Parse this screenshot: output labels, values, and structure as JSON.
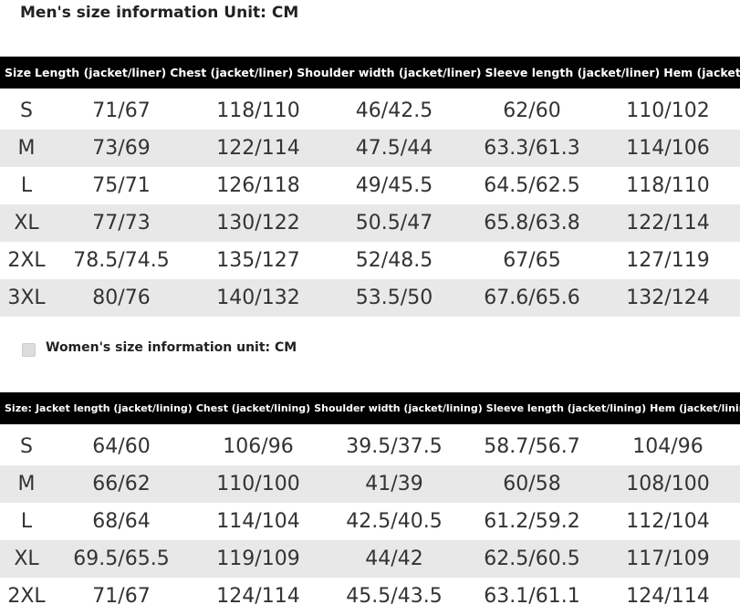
{
  "men": {
    "title": "Men's size information Unit: CM",
    "header": [
      "Size",
      "Length (jacket/liner)",
      "Chest (jacket/liner)",
      "Shoulder width (jacket/liner)",
      "Sleeve length (jacket/liner)",
      "Hem (jacket/liner)"
    ],
    "rows": [
      [
        "S",
        "71/67",
        "118/110",
        "46/42.5",
        "62/60",
        "110/102"
      ],
      [
        "M",
        "73/69",
        "122/114",
        "47.5/44",
        "63.3/61.3",
        "114/106"
      ],
      [
        "L",
        "75/71",
        "126/118",
        "49/45.5",
        "64.5/62.5",
        "118/110"
      ],
      [
        "XL",
        "77/73",
        "130/122",
        "50.5/47",
        "65.8/63.8",
        "122/114"
      ],
      [
        "2XL",
        "78.5/74.5",
        "135/127",
        "52/48.5",
        "67/65",
        "127/119"
      ],
      [
        "3XL",
        "80/76",
        "140/132",
        "53.5/50",
        "67.6/65.6",
        "132/124"
      ]
    ]
  },
  "women": {
    "title": "Women's size information unit: CM",
    "header": [
      "Size:",
      "Jacket length (jacket/lining)",
      "Chest (jacket/lining)",
      "Shoulder width (jacket/lining)",
      "Sleeve length (jacket/lining)",
      "Hem (jacket/lining)"
    ],
    "rows": [
      [
        "S",
        "64/60",
        "106/96",
        "39.5/37.5",
        "58.7/56.7",
        "104/96"
      ],
      [
        "M",
        "66/62",
        "110/100",
        "41/39",
        "60/58",
        "108/100"
      ],
      [
        "L",
        "68/64",
        "114/104",
        "42.5/40.5",
        "61.2/59.2",
        "112/104"
      ],
      [
        "XL",
        "69.5/65.5",
        "119/109",
        "44/42",
        "62.5/60.5",
        "117/109"
      ],
      [
        "2XL",
        "71/67",
        "124/114",
        "45.5/43.5",
        "63.1/61.1",
        "124/114"
      ]
    ]
  }
}
